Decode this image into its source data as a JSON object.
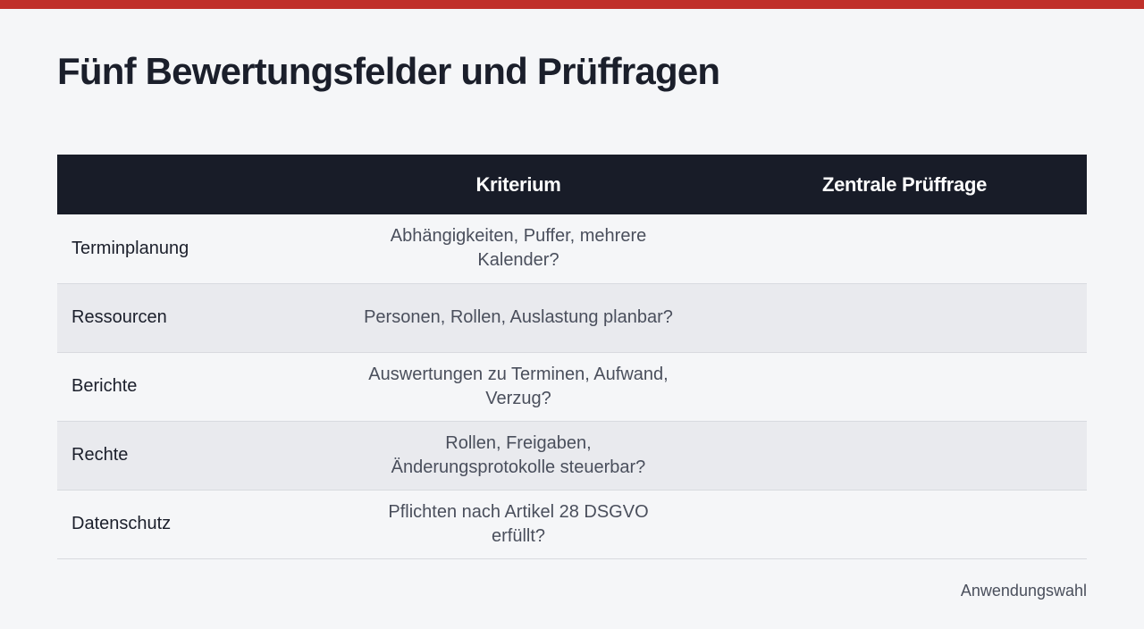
{
  "accent_color": "#c0302a",
  "header_background": "#181c28",
  "page_title": "Fünf Bewertungsfelder und Prüffragen",
  "table": {
    "headers": [
      "",
      "Kriterium",
      "Zentrale Prüffrage"
    ],
    "rows": [
      {
        "field": "Terminplanung",
        "question": "Abhängigkeiten, Puffer, mehrere Kalender?"
      },
      {
        "field": "Ressourcen",
        "question": "Personen, Rollen, Auslastung planbar?"
      },
      {
        "field": "Berichte",
        "question": "Auswertungen zu Terminen, Aufwand, Verzug?"
      },
      {
        "field": "Rechte",
        "question": "Rollen, Freigaben, Änderungsprotokolle steuerbar?"
      },
      {
        "field": "Datenschutz",
        "question": "Pflichten nach Artikel 28 DSGVO erfüllt?"
      }
    ]
  },
  "footer": {
    "label": "Anwendungswahl"
  }
}
